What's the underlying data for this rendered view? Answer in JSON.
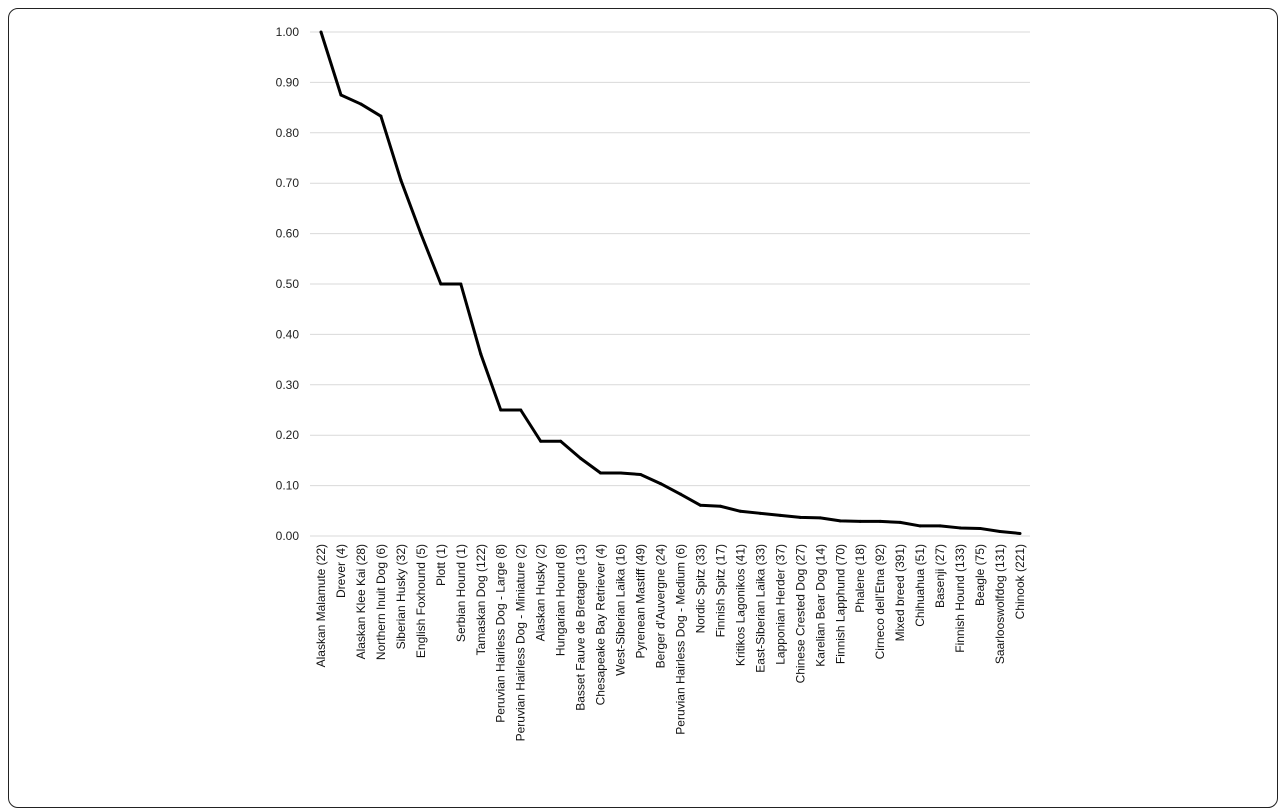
{
  "chart_data": {
    "type": "line",
    "title": "",
    "xlabel": "",
    "ylabel": "",
    "ylim": [
      0,
      1
    ],
    "yticks": [
      "0.00",
      "0.10",
      "0.20",
      "0.30",
      "0.40",
      "0.50",
      "0.60",
      "0.70",
      "0.80",
      "0.90",
      "1.00"
    ],
    "grid": true,
    "legend": "none",
    "line_color": "#000000",
    "categories": [
      "Alaskan Malamute (22)",
      "Drever (4)",
      "Alaskan Klee Kai (28)",
      "Northern Inuit Dog (6)",
      "Siberian Husky (32)",
      "English Foxhound (5)",
      "Plott (1)",
      "Serbian Hound (1)",
      "Tamaskan Dog (122)",
      "Peruvian Hairless Dog - Large (8)",
      "Peruvian Hairless Dog - Miniature (2)",
      "Alaskan Husky (2)",
      "Hungarian Hound (8)",
      "Basset Fauve de Bretagne (13)",
      "Chesapeake Bay Retriever (4)",
      "West-Siberian Laika (16)",
      "Pyrenean Mastiff (49)",
      "Berger d'Auvergne (24)",
      "Peruvian Hairless Dog - Medium (6)",
      "Nordic Spitz (33)",
      "Finnish Spitz (17)",
      "Kritikos Lagonikos (41)",
      "East-Siberian Laika (33)",
      "Lapponian Herder (37)",
      "Chinese Crested Dog (27)",
      "Karelian Bear Dog (14)",
      "Finnish Lapphund (70)",
      "Phalene (18)",
      "Cirneco dell’Etna (92)",
      "Mixed breed (391)",
      "Chihuahua (51)",
      "Basenji (27)",
      "Finnish Hound (133)",
      "Beagle (75)",
      "Saarlooswolfdog (131)",
      "Chinook (221)"
    ],
    "series": [
      {
        "values": [
          1.0,
          0.875,
          0.857,
          0.833,
          0.706,
          0.6,
          0.5,
          0.5,
          0.361,
          0.25,
          0.25,
          0.188,
          0.188,
          0.154,
          0.125,
          0.125,
          0.122,
          0.104,
          0.083,
          0.061,
          0.059,
          0.049,
          0.045,
          0.041,
          0.037,
          0.036,
          0.03,
          0.029,
          0.029,
          0.027,
          0.02,
          0.02,
          0.016,
          0.015,
          0.009,
          0.005
        ]
      }
    ]
  }
}
